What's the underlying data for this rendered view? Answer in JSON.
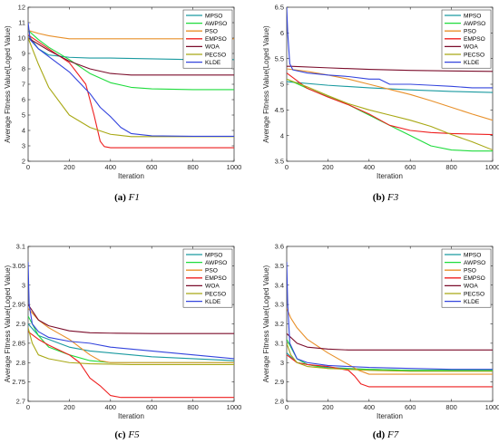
{
  "chart_data": [
    {
      "type": "line",
      "subfig_label": "(a)",
      "subfig_name": "F1",
      "xlabel": "Iteration",
      "ylabel": "Average Fitness Value(Loged Value)",
      "xlim": [
        0,
        1000
      ],
      "ylim": [
        2,
        12
      ],
      "xticks": [
        0,
        200,
        400,
        600,
        800,
        1000
      ],
      "yticks": [
        2,
        3,
        4,
        5,
        6,
        7,
        8,
        9,
        10,
        11,
        12
      ],
      "grid": false,
      "legend": "top-right",
      "series": [
        {
          "name": "MPSO",
          "color": "#1a9aa0",
          "x": [
            0,
            50,
            100,
            200,
            300,
            400,
            600,
            800,
            1000
          ],
          "y": [
            10.2,
            9.3,
            8.9,
            8.75,
            8.7,
            8.7,
            8.65,
            8.6,
            8.6
          ]
        },
        {
          "name": "AWPSO",
          "color": "#1edc3c",
          "x": [
            0,
            50,
            100,
            200,
            300,
            400,
            500,
            600,
            800,
            1000
          ],
          "y": [
            10.5,
            9.9,
            9.4,
            8.6,
            7.7,
            7.1,
            6.8,
            6.7,
            6.65,
            6.65
          ]
        },
        {
          "name": "PSO",
          "color": "#e8902a",
          "x": [
            0,
            50,
            100,
            150,
            200,
            300,
            500,
            800,
            1000
          ],
          "y": [
            10.5,
            10.3,
            10.15,
            10.05,
            9.95,
            9.95,
            9.95,
            9.95,
            9.95
          ]
        },
        {
          "name": "EMPSO",
          "color": "#ee1f1f",
          "x": [
            0,
            100,
            200,
            280,
            320,
            350,
            370,
            400,
            500,
            1000
          ],
          "y": [
            10.2,
            9.3,
            8.4,
            7.0,
            5.0,
            3.3,
            2.95,
            2.88,
            2.88,
            2.88
          ]
        },
        {
          "name": "WOA",
          "color": "#7b0d2b",
          "x": [
            0,
            100,
            200,
            300,
            400,
            500,
            600,
            800,
            1000
          ],
          "y": [
            10.0,
            9.2,
            8.5,
            8.0,
            7.7,
            7.6,
            7.6,
            7.6,
            7.6
          ]
        },
        {
          "name": "PECSO",
          "color": "#a8a814",
          "x": [
            0,
            50,
            100,
            200,
            300,
            400,
            500,
            600,
            800,
            1000
          ],
          "y": [
            10.0,
            8.3,
            6.8,
            5.0,
            4.2,
            3.75,
            3.6,
            3.6,
            3.6,
            3.6
          ]
        },
        {
          "name": "KLDE",
          "color": "#3344dd",
          "x": [
            0,
            10,
            50,
            100,
            200,
            300,
            350,
            400,
            450,
            500,
            600,
            800,
            1000
          ],
          "y": [
            11.0,
            9.9,
            9.3,
            8.8,
            7.8,
            6.4,
            5.5,
            4.9,
            4.2,
            3.8,
            3.65,
            3.62,
            3.62
          ]
        }
      ]
    },
    {
      "type": "line",
      "subfig_label": "(b)",
      "subfig_name": "F3",
      "xlabel": "Iteration",
      "ylabel": "Average Fitness Value(Loged Value)",
      "xlim": [
        0,
        1000
      ],
      "ylim": [
        3.5,
        6.5
      ],
      "xticks": [
        0,
        200,
        400,
        600,
        800,
        1000
      ],
      "yticks": [
        3.5,
        4,
        4.5,
        5,
        5.5,
        6,
        6.5
      ],
      "grid": false,
      "legend": "top-right",
      "series": [
        {
          "name": "MPSO",
          "color": "#1a9aa0",
          "x": [
            0,
            200,
            400,
            600,
            800,
            1000
          ],
          "y": [
            5.05,
            4.98,
            4.93,
            4.89,
            4.86,
            4.84
          ]
        },
        {
          "name": "AWPSO",
          "color": "#1edc3c",
          "x": [
            0,
            100,
            200,
            300,
            400,
            500,
            600,
            700,
            800,
            900,
            1000
          ],
          "y": [
            5.1,
            4.92,
            4.76,
            4.6,
            4.4,
            4.2,
            4.0,
            3.8,
            3.72,
            3.7,
            3.7
          ]
        },
        {
          "name": "PSO",
          "color": "#e8902a",
          "x": [
            0,
            100,
            200,
            300,
            400,
            500,
            600,
            700,
            800,
            900,
            1000
          ],
          "y": [
            5.3,
            5.25,
            5.18,
            5.1,
            5.0,
            4.9,
            4.8,
            4.68,
            4.55,
            4.42,
            4.3
          ]
        },
        {
          "name": "EMPSO",
          "color": "#ee1f1f",
          "x": [
            0,
            100,
            200,
            300,
            400,
            500,
            600,
            700,
            800,
            1000
          ],
          "y": [
            5.22,
            4.92,
            4.75,
            4.6,
            4.42,
            4.2,
            4.1,
            4.06,
            4.04,
            4.02
          ]
        },
        {
          "name": "WOA",
          "color": "#7b0d2b",
          "x": [
            0,
            20,
            200,
            400,
            600,
            800,
            1000
          ],
          "y": [
            5.35,
            5.35,
            5.32,
            5.29,
            5.27,
            5.26,
            5.25
          ]
        },
        {
          "name": "PECSO",
          "color": "#a8a814",
          "x": [
            0,
            100,
            200,
            300,
            400,
            500,
            600,
            700,
            800,
            900,
            1000
          ],
          "y": [
            5.1,
            4.95,
            4.78,
            4.62,
            4.5,
            4.4,
            4.3,
            4.18,
            4.02,
            3.88,
            3.72
          ]
        },
        {
          "name": "KLDE",
          "color": "#3344dd",
          "x": [
            0,
            5,
            15,
            30,
            100,
            200,
            300,
            400,
            450,
            500,
            600,
            700,
            800,
            900,
            1000
          ],
          "y": [
            6.5,
            6.0,
            5.4,
            5.28,
            5.22,
            5.18,
            5.15,
            5.1,
            5.1,
            5.0,
            5.0,
            4.98,
            4.96,
            4.93,
            4.93
          ]
        }
      ]
    },
    {
      "type": "line",
      "subfig_label": "(c)",
      "subfig_name": "F5",
      "xlabel": "Iteration",
      "ylabel": "Average Fitness Value(Loged Value)",
      "xlim": [
        0,
        1000
      ],
      "ylim": [
        2.7,
        3.1
      ],
      "xticks": [
        0,
        200,
        400,
        600,
        800,
        1000
      ],
      "yticks": [
        2.7,
        2.75,
        2.8,
        2.85,
        2.9,
        2.95,
        3,
        3.05,
        3.1
      ],
      "grid": false,
      "legend": "top-right",
      "series": [
        {
          "name": "MPSO",
          "color": "#1a9aa0",
          "x": [
            0,
            50,
            100,
            200,
            300,
            400,
            500,
            600,
            800,
            1000
          ],
          "y": [
            2.9,
            2.87,
            2.86,
            2.84,
            2.83,
            2.825,
            2.82,
            2.815,
            2.81,
            2.805
          ]
        },
        {
          "name": "AWPSO",
          "color": "#1edc3c",
          "x": [
            0,
            50,
            100,
            200,
            300,
            400,
            600,
            800,
            1000
          ],
          "y": [
            2.92,
            2.87,
            2.84,
            2.82,
            2.805,
            2.8,
            2.8,
            2.8,
            2.8
          ]
        },
        {
          "name": "PSO",
          "color": "#e8902a",
          "x": [
            0,
            50,
            100,
            150,
            200,
            250,
            300,
            350,
            400,
            600,
            800,
            1000
          ],
          "y": [
            2.94,
            2.91,
            2.89,
            2.875,
            2.86,
            2.84,
            2.82,
            2.805,
            2.8,
            2.8,
            2.8,
            2.8
          ]
        },
        {
          "name": "EMPSO",
          "color": "#ee1f1f",
          "x": [
            0,
            50,
            100,
            200,
            250,
            300,
            350,
            400,
            450,
            600,
            800,
            1000
          ],
          "y": [
            2.88,
            2.86,
            2.845,
            2.82,
            2.8,
            2.76,
            2.74,
            2.715,
            2.71,
            2.71,
            2.71,
            2.71
          ]
        },
        {
          "name": "WOA",
          "color": "#7b0d2b",
          "x": [
            0,
            50,
            100,
            200,
            300,
            400,
            600,
            800,
            1000
          ],
          "y": [
            2.95,
            2.91,
            2.895,
            2.882,
            2.877,
            2.876,
            2.875,
            2.875,
            2.875
          ]
        },
        {
          "name": "PECSO",
          "color": "#a8a814",
          "x": [
            0,
            20,
            50,
            100,
            150,
            200,
            300,
            500,
            700,
            1000
          ],
          "y": [
            2.89,
            2.85,
            2.82,
            2.81,
            2.805,
            2.8,
            2.797,
            2.795,
            2.795,
            2.795
          ]
        },
        {
          "name": "KLDE",
          "color": "#3344dd",
          "x": [
            0,
            5,
            20,
            50,
            100,
            200,
            300,
            400,
            500,
            600,
            700,
            800,
            900,
            1000
          ],
          "y": [
            3.06,
            2.95,
            2.9,
            2.88,
            2.865,
            2.855,
            2.85,
            2.84,
            2.835,
            2.83,
            2.825,
            2.82,
            2.815,
            2.81
          ]
        }
      ]
    },
    {
      "type": "line",
      "subfig_label": "(d)",
      "subfig_name": "F7",
      "xlabel": "Iteration",
      "ylabel": "Average Fitness Value(Loged Value)",
      "xlim": [
        0,
        1000
      ],
      "ylim": [
        2.8,
        3.6
      ],
      "xticks": [
        0,
        200,
        400,
        600,
        800,
        1000
      ],
      "yticks": [
        2.8,
        2.9,
        3,
        3.1,
        3.2,
        3.3,
        3.4,
        3.5,
        3.6
      ],
      "grid": false,
      "legend": "top-right",
      "series": [
        {
          "name": "MPSO",
          "color": "#1a9aa0",
          "x": [
            0,
            50,
            100,
            200,
            400,
            600,
            800,
            1000
          ],
          "y": [
            3.05,
            3.0,
            2.99,
            2.975,
            2.965,
            2.96,
            2.96,
            2.96
          ]
        },
        {
          "name": "AWPSO",
          "color": "#1edc3c",
          "x": [
            0,
            50,
            100,
            200,
            400,
            600,
            800,
            1000
          ],
          "y": [
            3.12,
            3.02,
            2.99,
            2.97,
            2.965,
            2.96,
            2.96,
            2.96
          ]
        },
        {
          "name": "PSO",
          "color": "#e8902a",
          "x": [
            0,
            20,
            50,
            100,
            200,
            300,
            350,
            400,
            600,
            800,
            1000
          ],
          "y": [
            3.28,
            3.23,
            3.18,
            3.12,
            3.05,
            2.99,
            2.96,
            2.94,
            2.94,
            2.94,
            2.94
          ]
        },
        {
          "name": "EMPSO",
          "color": "#ee1f1f",
          "x": [
            0,
            50,
            100,
            200,
            300,
            330,
            360,
            400,
            500,
            600,
            800,
            1000
          ],
          "y": [
            3.04,
            3.0,
            2.99,
            2.98,
            2.96,
            2.93,
            2.89,
            2.875,
            2.875,
            2.875,
            2.875,
            2.875
          ]
        },
        {
          "name": "WOA",
          "color": "#7b0d2b",
          "x": [
            0,
            50,
            100,
            200,
            300,
            400,
            600,
            800,
            1000
          ],
          "y": [
            3.15,
            3.1,
            3.08,
            3.07,
            3.065,
            3.065,
            3.065,
            3.065,
            3.065
          ]
        },
        {
          "name": "PECSO",
          "color": "#a8a814",
          "x": [
            0,
            20,
            50,
            100,
            200,
            400,
            600,
            800,
            1000
          ],
          "y": [
            3.1,
            3.04,
            3.0,
            2.98,
            2.97,
            2.96,
            2.955,
            2.955,
            2.955
          ]
        },
        {
          "name": "KLDE",
          "color": "#3344dd",
          "x": [
            0,
            5,
            15,
            50,
            100,
            200,
            400,
            600,
            800,
            1000
          ],
          "y": [
            3.52,
            3.3,
            3.1,
            3.02,
            3.0,
            2.985,
            2.975,
            2.97,
            2.965,
            2.965
          ]
        }
      ]
    }
  ]
}
